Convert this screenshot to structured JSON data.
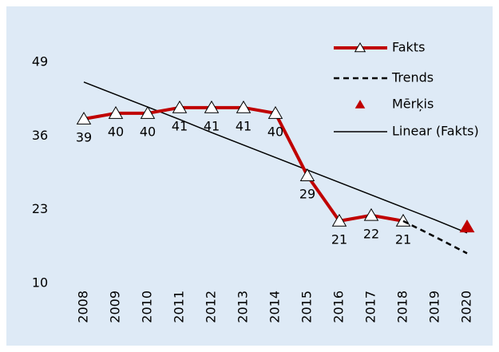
{
  "chart_data": {
    "type": "line",
    "categories": [
      "2008",
      "2009",
      "2010",
      "2011",
      "2012",
      "2013",
      "2014",
      "2015",
      "2016",
      "2017",
      "2018",
      "2019",
      "2020"
    ],
    "series": [
      {
        "name": "Fakts",
        "color": "#c00000",
        "line_style": "solid",
        "width": 4,
        "marker": "open-triangle",
        "values": [
          39,
          40,
          40,
          41,
          41,
          41,
          40,
          29,
          21,
          22,
          21,
          null,
          null
        ]
      },
      {
        "name": "Trends",
        "color": "#000000",
        "line_style": "dashed",
        "width": 2.5,
        "marker": "none",
        "values": [
          null,
          null,
          null,
          null,
          null,
          null,
          null,
          null,
          null,
          null,
          21,
          18.2,
          15.3
        ]
      },
      {
        "name": "Mērķis",
        "color": "#c00000",
        "line_style": "none",
        "width": 0,
        "marker": "filled-triangle",
        "values": [
          null,
          null,
          null,
          null,
          null,
          null,
          null,
          null,
          null,
          null,
          null,
          null,
          20
        ]
      },
      {
        "name": "Linear (Fakts)",
        "color": "#000000",
        "line_style": "solid",
        "width": 1.5,
        "marker": "none",
        "values": [
          45.5,
          43.3,
          41.1,
          38.9,
          36.6,
          34.4,
          32.2,
          30.0,
          27.8,
          25.6,
          23.4,
          21.2,
          18.9
        ]
      }
    ],
    "data_labels_series": 0,
    "ylim": [
      10,
      49
    ],
    "yticks": [
      10,
      23,
      36,
      49
    ],
    "grid": false
  }
}
